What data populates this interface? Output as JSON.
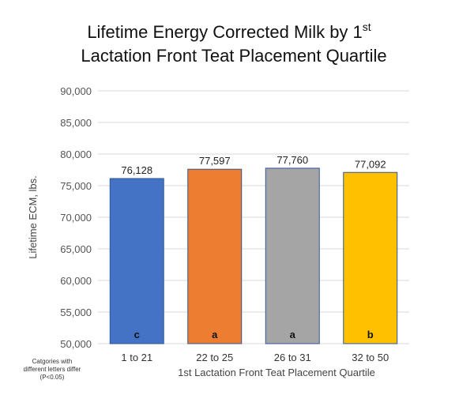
{
  "chart_data": {
    "type": "bar",
    "title_line1": "Lifetime Energy Corrected Milk by 1",
    "title_sup": "st",
    "title_line2": "Lactation Front Teat Placement Quartile",
    "xlabel": "1st Lactation Front Teat Placement Quartile",
    "ylabel": "Lifetime ECM, lbs.",
    "ylim": [
      50000,
      90000
    ],
    "yticks": [
      "50,000",
      "55,000",
      "60,000",
      "65,000",
      "70,000",
      "75,000",
      "80,000",
      "85,000",
      "90,000"
    ],
    "categories": [
      "1 to 21",
      "22 to 25",
      "26 to 31",
      "32 to 50"
    ],
    "values": [
      76128,
      77597,
      77760,
      77092
    ],
    "value_labels": [
      "76,128",
      "77,597",
      "77,760",
      "77,092"
    ],
    "letters": [
      "c",
      "a",
      "a",
      "b"
    ],
    "colors": [
      "#4472c4",
      "#ed7d31",
      "#a5a5a5",
      "#ffc000"
    ],
    "bar_outline": "#2f5597",
    "grid": true,
    "footnote": [
      "Catgories with",
      "different letters differ",
      "(P<0.05)"
    ]
  }
}
